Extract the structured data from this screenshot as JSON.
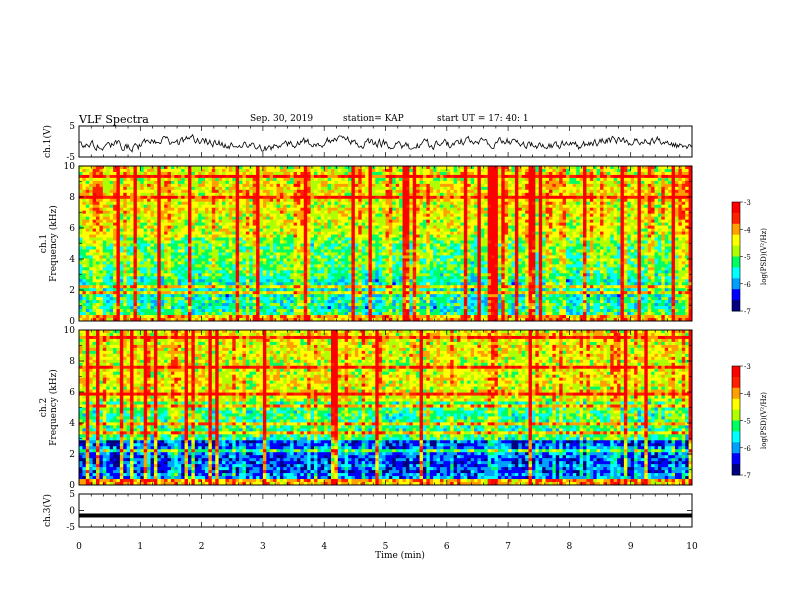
{
  "header": {
    "title": "VLF Spectra",
    "date": "Sep. 30, 2019",
    "station": "station= KAP",
    "start": "start  UT  =   17: 40: 1"
  },
  "chart_data": {
    "type": "heatmap",
    "xlabel": "Time  (min)",
    "xlim": [
      0,
      10
    ],
    "xticks": [
      "0",
      "1",
      "2",
      "3",
      "4",
      "5",
      "6",
      "7",
      "8",
      "9",
      "10"
    ],
    "panels": [
      {
        "id": "ch1-waveform",
        "type": "line",
        "ylabel": "ch.1(V)",
        "ylim": [
          -5,
          5
        ],
        "yticks": [
          "5",
          "-5"
        ]
      },
      {
        "id": "ch1-spectrogram",
        "type": "heatmap",
        "ylabel_line1": "ch.1",
        "ylabel_line2": "Frequency  (kHz)",
        "ylim": [
          0,
          10
        ],
        "yticks": [
          "0",
          "2",
          "4",
          "6",
          "8",
          "10"
        ],
        "colorbar": {
          "label": "log(PSD)(V²/Hz)",
          "range": [
            -7,
            -3
          ],
          "ticks": [
            "-3",
            "-4",
            "-5",
            "-6",
            "-7"
          ]
        }
      },
      {
        "id": "ch2-spectrogram",
        "type": "heatmap",
        "ylabel_line1": "ch.2",
        "ylabel_line2": "Frequency  (kHz)",
        "ylim": [
          0,
          10
        ],
        "yticks": [
          "0",
          "2",
          "4",
          "6",
          "8",
          "10"
        ],
        "colorbar": {
          "label": "log(PSD)(V²/Hz)",
          "range": [
            -7,
            -3
          ],
          "ticks": [
            "-3",
            "-4",
            "-5",
            "-6",
            "-7"
          ]
        }
      },
      {
        "id": "ch3-waveform",
        "type": "line",
        "ylabel": "ch.3(V)",
        "ylim": [
          -5,
          5
        ],
        "yticks": [
          "5",
          "0",
          "-5"
        ],
        "constant_value": -1.5
      }
    ],
    "colormap": [
      "#000080",
      "#0000ff",
      "#00a0ff",
      "#00ffff",
      "#00ff60",
      "#b0ff00",
      "#ffff00",
      "#ffa000",
      "#ff2000",
      "#ff0000",
      "#ffffff"
    ]
  }
}
